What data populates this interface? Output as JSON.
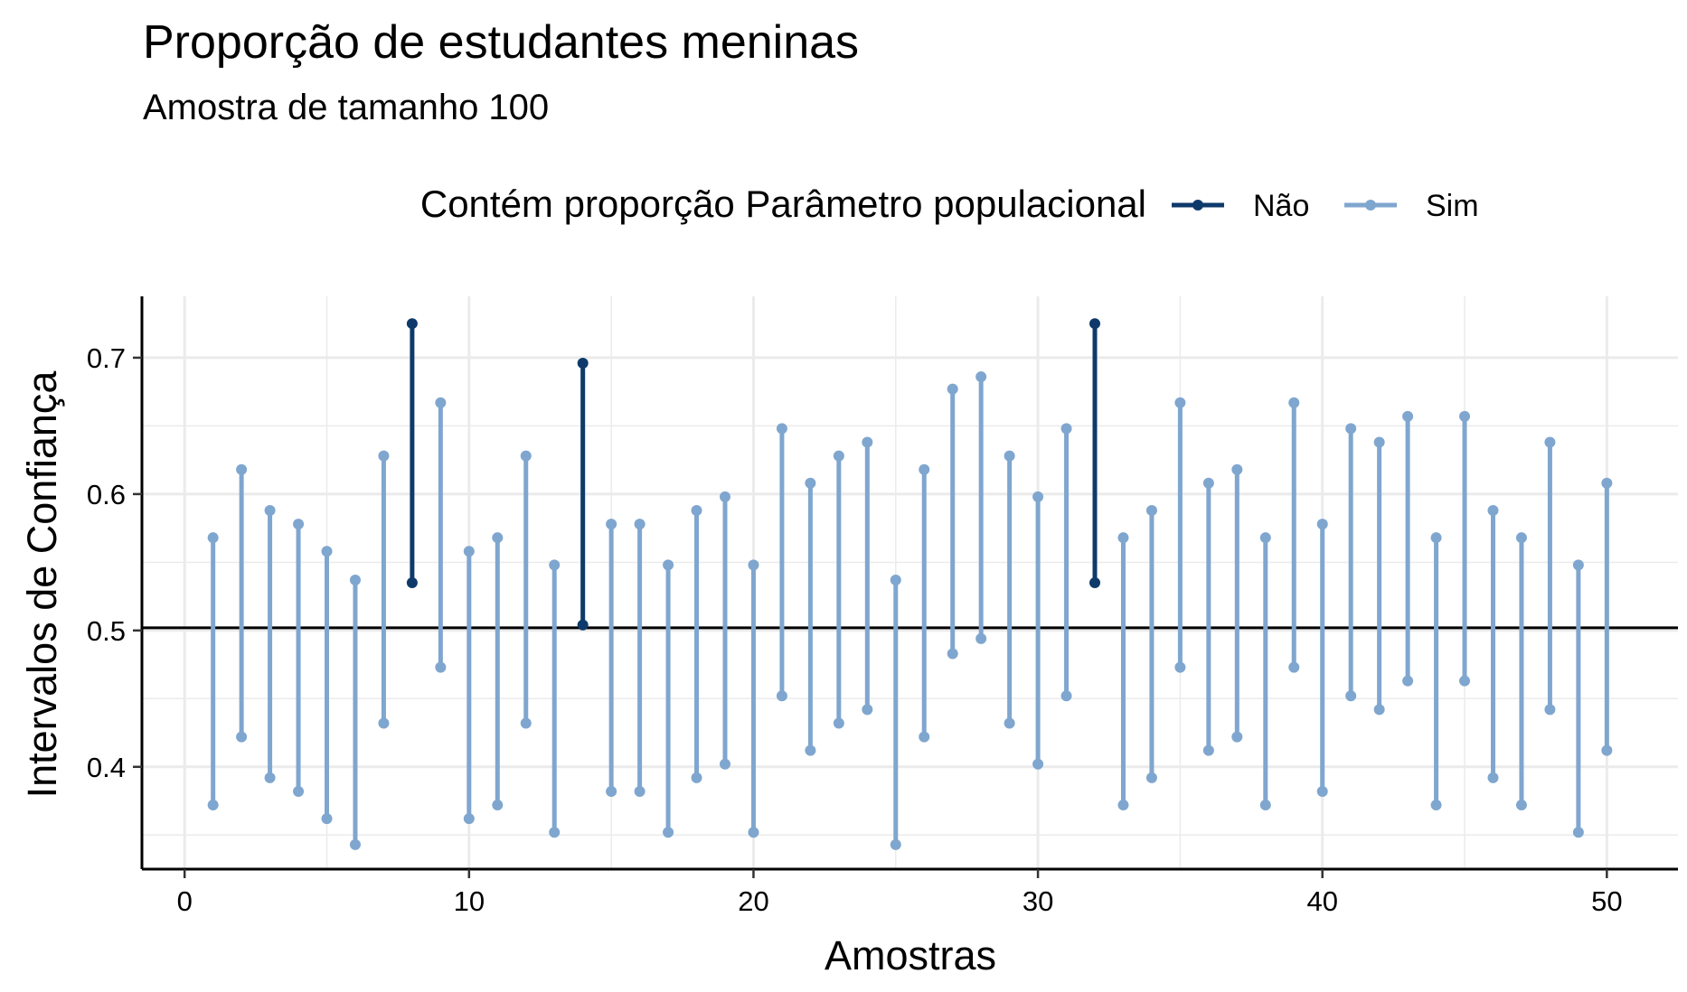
{
  "chart_data": {
    "type": "errorbar",
    "title": "Proporção de estudantes meninas",
    "subtitle": "Amostra de tamanho 100",
    "xlabel": "Amostras",
    "ylabel": "Intervalos de Confiança",
    "xlim": [
      -1.5,
      52.5
    ],
    "ylim": [
      0.325,
      0.745
    ],
    "x_ticks": [
      0,
      10,
      20,
      30,
      40,
      50
    ],
    "y_ticks": [
      0.4,
      0.5,
      0.6,
      0.7
    ],
    "x_tick_labels": [
      "0",
      "10",
      "20",
      "30",
      "40",
      "50"
    ],
    "y_tick_labels": [
      "0.4",
      "0.5",
      "0.6",
      "0.7"
    ],
    "reference_line": 0.502,
    "grid": true,
    "legend": {
      "title": "Contém proporção Parâmetro populacional",
      "position": "top",
      "entries": [
        {
          "label": "Não",
          "color": "#0e3a6b"
        },
        {
          "label": "Sim",
          "color": "#7fa6cf"
        }
      ]
    },
    "colors": {
      "Não": "#0e3a6b",
      "Sim": "#7fa6cf",
      "reference": "#000000",
      "grid": "#ebebeb"
    },
    "intervals": [
      {
        "x": 1,
        "lower": 0.372,
        "upper": 0.568,
        "contains": "Sim"
      },
      {
        "x": 2,
        "lower": 0.422,
        "upper": 0.618,
        "contains": "Sim"
      },
      {
        "x": 3,
        "lower": 0.392,
        "upper": 0.588,
        "contains": "Sim"
      },
      {
        "x": 4,
        "lower": 0.382,
        "upper": 0.578,
        "contains": "Sim"
      },
      {
        "x": 5,
        "lower": 0.362,
        "upper": 0.558,
        "contains": "Sim"
      },
      {
        "x": 6,
        "lower": 0.343,
        "upper": 0.537,
        "contains": "Sim"
      },
      {
        "x": 7,
        "lower": 0.432,
        "upper": 0.628,
        "contains": "Sim"
      },
      {
        "x": 8,
        "lower": 0.535,
        "upper": 0.725,
        "contains": "Não"
      },
      {
        "x": 9,
        "lower": 0.473,
        "upper": 0.667,
        "contains": "Sim"
      },
      {
        "x": 10,
        "lower": 0.362,
        "upper": 0.558,
        "contains": "Sim"
      },
      {
        "x": 11,
        "lower": 0.372,
        "upper": 0.568,
        "contains": "Sim"
      },
      {
        "x": 12,
        "lower": 0.432,
        "upper": 0.628,
        "contains": "Sim"
      },
      {
        "x": 13,
        "lower": 0.352,
        "upper": 0.548,
        "contains": "Sim"
      },
      {
        "x": 14,
        "lower": 0.504,
        "upper": 0.696,
        "contains": "Não"
      },
      {
        "x": 15,
        "lower": 0.382,
        "upper": 0.578,
        "contains": "Sim"
      },
      {
        "x": 16,
        "lower": 0.382,
        "upper": 0.578,
        "contains": "Sim"
      },
      {
        "x": 17,
        "lower": 0.352,
        "upper": 0.548,
        "contains": "Sim"
      },
      {
        "x": 18,
        "lower": 0.392,
        "upper": 0.588,
        "contains": "Sim"
      },
      {
        "x": 19,
        "lower": 0.402,
        "upper": 0.598,
        "contains": "Sim"
      },
      {
        "x": 20,
        "lower": 0.352,
        "upper": 0.548,
        "contains": "Sim"
      },
      {
        "x": 21,
        "lower": 0.452,
        "upper": 0.648,
        "contains": "Sim"
      },
      {
        "x": 22,
        "lower": 0.412,
        "upper": 0.608,
        "contains": "Sim"
      },
      {
        "x": 23,
        "lower": 0.432,
        "upper": 0.628,
        "contains": "Sim"
      },
      {
        "x": 24,
        "lower": 0.442,
        "upper": 0.638,
        "contains": "Sim"
      },
      {
        "x": 25,
        "lower": 0.343,
        "upper": 0.537,
        "contains": "Sim"
      },
      {
        "x": 26,
        "lower": 0.422,
        "upper": 0.618,
        "contains": "Sim"
      },
      {
        "x": 27,
        "lower": 0.483,
        "upper": 0.677,
        "contains": "Sim"
      },
      {
        "x": 28,
        "lower": 0.494,
        "upper": 0.686,
        "contains": "Sim"
      },
      {
        "x": 29,
        "lower": 0.432,
        "upper": 0.628,
        "contains": "Sim"
      },
      {
        "x": 30,
        "lower": 0.402,
        "upper": 0.598,
        "contains": "Sim"
      },
      {
        "x": 31,
        "lower": 0.452,
        "upper": 0.648,
        "contains": "Sim"
      },
      {
        "x": 32,
        "lower": 0.535,
        "upper": 0.725,
        "contains": "Não"
      },
      {
        "x": 33,
        "lower": 0.372,
        "upper": 0.568,
        "contains": "Sim"
      },
      {
        "x": 34,
        "lower": 0.392,
        "upper": 0.588,
        "contains": "Sim"
      },
      {
        "x": 35,
        "lower": 0.473,
        "upper": 0.667,
        "contains": "Sim"
      },
      {
        "x": 36,
        "lower": 0.412,
        "upper": 0.608,
        "contains": "Sim"
      },
      {
        "x": 37,
        "lower": 0.422,
        "upper": 0.618,
        "contains": "Sim"
      },
      {
        "x": 38,
        "lower": 0.372,
        "upper": 0.568,
        "contains": "Sim"
      },
      {
        "x": 39,
        "lower": 0.473,
        "upper": 0.667,
        "contains": "Sim"
      },
      {
        "x": 40,
        "lower": 0.382,
        "upper": 0.578,
        "contains": "Sim"
      },
      {
        "x": 41,
        "lower": 0.452,
        "upper": 0.648,
        "contains": "Sim"
      },
      {
        "x": 42,
        "lower": 0.442,
        "upper": 0.638,
        "contains": "Sim"
      },
      {
        "x": 43,
        "lower": 0.463,
        "upper": 0.657,
        "contains": "Sim"
      },
      {
        "x": 44,
        "lower": 0.372,
        "upper": 0.568,
        "contains": "Sim"
      },
      {
        "x": 45,
        "lower": 0.463,
        "upper": 0.657,
        "contains": "Sim"
      },
      {
        "x": 46,
        "lower": 0.392,
        "upper": 0.588,
        "contains": "Sim"
      },
      {
        "x": 47,
        "lower": 0.372,
        "upper": 0.568,
        "contains": "Sim"
      },
      {
        "x": 48,
        "lower": 0.442,
        "upper": 0.638,
        "contains": "Sim"
      },
      {
        "x": 49,
        "lower": 0.352,
        "upper": 0.548,
        "contains": "Sim"
      },
      {
        "x": 50,
        "lower": 0.412,
        "upper": 0.608,
        "contains": "Sim"
      }
    ]
  }
}
